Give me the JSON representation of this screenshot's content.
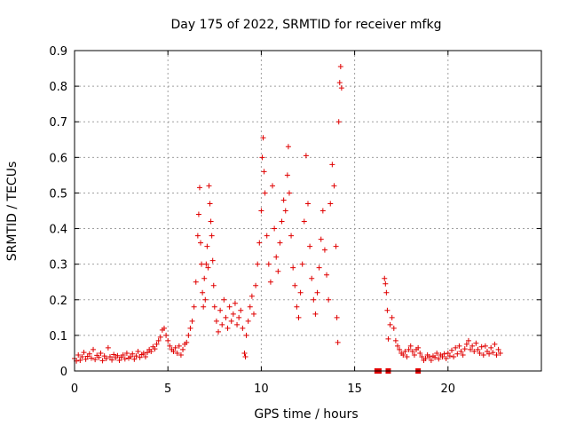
{
  "chart_data": {
    "type": "scatter",
    "title": "Day 175 of 2022, SRMTID for receiver mfkg",
    "xlabel": "GPS time / hours",
    "ylabel": "SRMTID / TECUs",
    "xlim": [
      0,
      25
    ],
    "ylim": [
      0,
      0.9
    ],
    "grid": true,
    "marker": "+",
    "color": "#e00000",
    "x_ticks": [
      "0",
      "5",
      "10",
      "15",
      "20"
    ],
    "y_ticks": [
      "0",
      "0.1",
      "0.2",
      "0.3",
      "0.4",
      "0.5",
      "0.6",
      "0.7",
      "0.8",
      "0.9"
    ],
    "series": [
      {
        "name": "SRMTID",
        "points": [
          [
            0.0,
            0.035
          ],
          [
            0.1,
            0.028
          ],
          [
            0.2,
            0.045
          ],
          [
            0.3,
            0.03
          ],
          [
            0.4,
            0.04
          ],
          [
            0.5,
            0.052
          ],
          [
            0.6,
            0.033
          ],
          [
            0.7,
            0.041
          ],
          [
            0.8,
            0.048
          ],
          [
            0.9,
            0.036
          ],
          [
            1.0,
            0.06
          ],
          [
            1.1,
            0.032
          ],
          [
            1.2,
            0.044
          ],
          [
            1.3,
            0.038
          ],
          [
            1.4,
            0.05
          ],
          [
            1.5,
            0.029
          ],
          [
            1.6,
            0.042
          ],
          [
            1.7,
            0.035
          ],
          [
            1.8,
            0.065
          ],
          [
            1.9,
            0.04
          ],
          [
            2.0,
            0.031
          ],
          [
            2.1,
            0.046
          ],
          [
            2.2,
            0.037
          ],
          [
            2.3,
            0.043
          ],
          [
            2.4,
            0.03
          ],
          [
            2.5,
            0.039
          ],
          [
            2.6,
            0.045
          ],
          [
            2.7,
            0.034
          ],
          [
            2.8,
            0.05
          ],
          [
            2.9,
            0.036
          ],
          [
            3.0,
            0.04
          ],
          [
            3.1,
            0.048
          ],
          [
            3.2,
            0.033
          ],
          [
            3.3,
            0.042
          ],
          [
            3.4,
            0.055
          ],
          [
            3.5,
            0.038
          ],
          [
            3.6,
            0.046
          ],
          [
            3.7,
            0.05
          ],
          [
            3.8,
            0.04
          ],
          [
            3.9,
            0.052
          ],
          [
            4.0,
            0.06
          ],
          [
            4.1,
            0.055
          ],
          [
            4.2,
            0.068
          ],
          [
            4.3,
            0.062
          ],
          [
            4.4,
            0.075
          ],
          [
            4.5,
            0.085
          ],
          [
            4.6,
            0.095
          ],
          [
            4.7,
            0.115
          ],
          [
            4.8,
            0.12
          ],
          [
            4.9,
            0.1
          ],
          [
            5.0,
            0.085
          ],
          [
            5.1,
            0.07
          ],
          [
            5.2,
            0.06
          ],
          [
            5.3,
            0.055
          ],
          [
            5.4,
            0.065
          ],
          [
            5.5,
            0.05
          ],
          [
            5.6,
            0.07
          ],
          [
            5.7,
            0.045
          ],
          [
            5.8,
            0.06
          ],
          [
            5.9,
            0.075
          ],
          [
            6.0,
            0.08
          ],
          [
            6.1,
            0.1
          ],
          [
            6.2,
            0.12
          ],
          [
            6.3,
            0.14
          ],
          [
            6.4,
            0.18
          ],
          [
            6.5,
            0.25
          ],
          [
            6.6,
            0.38
          ],
          [
            6.65,
            0.44
          ],
          [
            6.7,
            0.515
          ],
          [
            6.75,
            0.36
          ],
          [
            6.8,
            0.3
          ],
          [
            6.85,
            0.22
          ],
          [
            6.9,
            0.18
          ],
          [
            6.95,
            0.26
          ],
          [
            7.0,
            0.2
          ],
          [
            7.05,
            0.3
          ],
          [
            7.1,
            0.35
          ],
          [
            7.15,
            0.29
          ],
          [
            7.2,
            0.52
          ],
          [
            7.25,
            0.47
          ],
          [
            7.3,
            0.42
          ],
          [
            7.35,
            0.38
          ],
          [
            7.4,
            0.31
          ],
          [
            7.45,
            0.24
          ],
          [
            7.5,
            0.18
          ],
          [
            7.6,
            0.14
          ],
          [
            7.7,
            0.11
          ],
          [
            7.8,
            0.17
          ],
          [
            7.9,
            0.13
          ],
          [
            8.0,
            0.2
          ],
          [
            8.1,
            0.15
          ],
          [
            8.2,
            0.12
          ],
          [
            8.3,
            0.18
          ],
          [
            8.4,
            0.14
          ],
          [
            8.5,
            0.16
          ],
          [
            8.6,
            0.19
          ],
          [
            8.7,
            0.13
          ],
          [
            8.8,
            0.15
          ],
          [
            8.9,
            0.17
          ],
          [
            9.0,
            0.12
          ],
          [
            9.1,
            0.05
          ],
          [
            9.15,
            0.04
          ],
          [
            9.2,
            0.1
          ],
          [
            9.3,
            0.14
          ],
          [
            9.4,
            0.18
          ],
          [
            9.5,
            0.21
          ],
          [
            9.6,
            0.16
          ],
          [
            9.7,
            0.24
          ],
          [
            9.8,
            0.3
          ],
          [
            9.9,
            0.36
          ],
          [
            10.0,
            0.45
          ],
          [
            10.05,
            0.6
          ],
          [
            10.1,
            0.655
          ],
          [
            10.15,
            0.56
          ],
          [
            10.2,
            0.5
          ],
          [
            10.3,
            0.38
          ],
          [
            10.4,
            0.3
          ],
          [
            10.5,
            0.25
          ],
          [
            10.6,
            0.52
          ],
          [
            10.7,
            0.4
          ],
          [
            10.8,
            0.32
          ],
          [
            10.9,
            0.28
          ],
          [
            11.0,
            0.36
          ],
          [
            11.1,
            0.42
          ],
          [
            11.2,
            0.48
          ],
          [
            11.3,
            0.45
          ],
          [
            11.4,
            0.55
          ],
          [
            11.45,
            0.63
          ],
          [
            11.5,
            0.5
          ],
          [
            11.6,
            0.38
          ],
          [
            11.7,
            0.29
          ],
          [
            11.8,
            0.24
          ],
          [
            11.9,
            0.18
          ],
          [
            12.0,
            0.15
          ],
          [
            12.1,
            0.22
          ],
          [
            12.2,
            0.3
          ],
          [
            12.3,
            0.42
          ],
          [
            12.4,
            0.605
          ],
          [
            12.5,
            0.47
          ],
          [
            12.6,
            0.35
          ],
          [
            12.7,
            0.26
          ],
          [
            12.8,
            0.2
          ],
          [
            12.9,
            0.16
          ],
          [
            13.0,
            0.22
          ],
          [
            13.1,
            0.29
          ],
          [
            13.2,
            0.37
          ],
          [
            13.3,
            0.45
          ],
          [
            13.4,
            0.34
          ],
          [
            13.5,
            0.27
          ],
          [
            13.6,
            0.2
          ],
          [
            13.7,
            0.47
          ],
          [
            13.8,
            0.58
          ],
          [
            13.9,
            0.52
          ],
          [
            14.0,
            0.35
          ],
          [
            14.05,
            0.15
          ],
          [
            14.1,
            0.08
          ],
          [
            14.15,
            0.7
          ],
          [
            14.2,
            0.81
          ],
          [
            14.25,
            0.855
          ],
          [
            14.3,
            0.795
          ],
          [
            16.6,
            0.26
          ],
          [
            16.65,
            0.245
          ],
          [
            16.7,
            0.22
          ],
          [
            16.75,
            0.17
          ],
          [
            16.8,
            0.09
          ],
          [
            16.9,
            0.13
          ],
          [
            17.0,
            0.15
          ],
          [
            17.1,
            0.12
          ],
          [
            17.2,
            0.085
          ],
          [
            17.3,
            0.07
          ],
          [
            17.4,
            0.06
          ],
          [
            17.5,
            0.05
          ],
          [
            17.6,
            0.045
          ],
          [
            17.7,
            0.055
          ],
          [
            17.8,
            0.04
          ],
          [
            17.9,
            0.06
          ],
          [
            18.0,
            0.07
          ],
          [
            18.1,
            0.055
          ],
          [
            18.2,
            0.045
          ],
          [
            18.3,
            0.06
          ],
          [
            18.4,
            0.065
          ],
          [
            18.5,
            0.05
          ],
          [
            18.6,
            0.04
          ],
          [
            18.7,
            0.03
          ],
          [
            18.8,
            0.035
          ],
          [
            18.9,
            0.045
          ],
          [
            19.0,
            0.04
          ],
          [
            19.1,
            0.03
          ],
          [
            19.2,
            0.042
          ],
          [
            19.3,
            0.038
          ],
          [
            19.4,
            0.05
          ],
          [
            19.5,
            0.034
          ],
          [
            19.6,
            0.045
          ],
          [
            19.7,
            0.04
          ],
          [
            19.8,
            0.048
          ],
          [
            19.9,
            0.035
          ],
          [
            20.0,
            0.05
          ],
          [
            20.1,
            0.042
          ],
          [
            20.2,
            0.058
          ],
          [
            20.3,
            0.04
          ],
          [
            20.4,
            0.065
          ],
          [
            20.5,
            0.048
          ],
          [
            20.6,
            0.07
          ],
          [
            20.7,
            0.055
          ],
          [
            20.8,
            0.045
          ],
          [
            20.9,
            0.062
          ],
          [
            21.0,
            0.075
          ],
          [
            21.1,
            0.085
          ],
          [
            21.2,
            0.06
          ],
          [
            21.3,
            0.07
          ],
          [
            21.4,
            0.055
          ],
          [
            21.5,
            0.078
          ],
          [
            21.6,
            0.06
          ],
          [
            21.7,
            0.05
          ],
          [
            21.8,
            0.068
          ],
          [
            21.9,
            0.045
          ],
          [
            22.0,
            0.07
          ],
          [
            22.1,
            0.055
          ],
          [
            22.2,
            0.048
          ],
          [
            22.3,
            0.065
          ],
          [
            22.4,
            0.052
          ],
          [
            22.5,
            0.075
          ],
          [
            22.6,
            0.045
          ],
          [
            22.7,
            0.06
          ],
          [
            22.8,
            0.05
          ]
        ]
      }
    ],
    "square_markers": [
      [
        16.2,
        0.0
      ],
      [
        16.3,
        0.0
      ],
      [
        16.8,
        0.0
      ],
      [
        18.4,
        0.0
      ]
    ]
  }
}
